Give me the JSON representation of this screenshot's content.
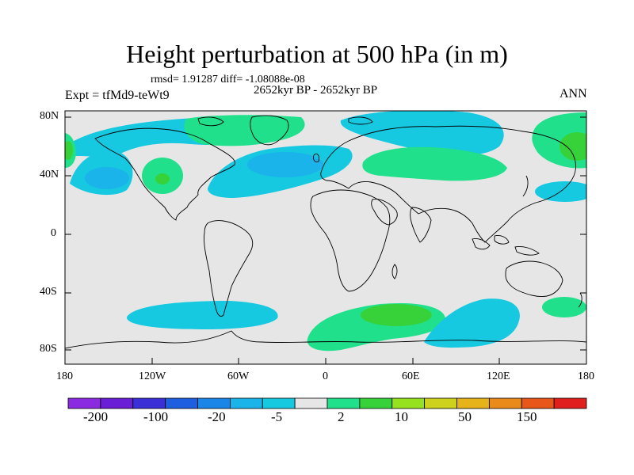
{
  "title": "Height perturbation at 500 hPa (in m)",
  "rmsd_line": "rmsd= 1.91287 diff= -1.08088e-08",
  "period": "2652kyr BP - 2652kyr BP",
  "experiment": "Expt = tfMd9-teWt9",
  "season": "ANN",
  "lat_ticks": [
    "80N",
    "40N",
    "0",
    "40S",
    "80S"
  ],
  "lon_ticks": [
    "180",
    "120W",
    "60W",
    "0",
    "60E",
    "120E",
    "180"
  ],
  "colorbar": {
    "tick_labels": [
      "-200",
      "-100",
      "-20",
      "-5",
      "2",
      "10",
      "50",
      "150"
    ],
    "colors": [
      "#8a2be2",
      "#6a1fd6",
      "#3b30d8",
      "#1e5ee0",
      "#1a86e8",
      "#1ab3ea",
      "#16c8e0",
      "#e6e6e6",
      "#21e08c",
      "#37d23a",
      "#96e21e",
      "#cfd21c",
      "#e6b41a",
      "#ea8a1a",
      "#e8561a",
      "#e01e1e"
    ]
  },
  "colors": {
    "background": "#e6e6e6",
    "positive_light": "#21e08c",
    "positive_mid": "#37d23a",
    "negative_light": "#16c8e0",
    "negative_mid": "#1ab3ea"
  }
}
